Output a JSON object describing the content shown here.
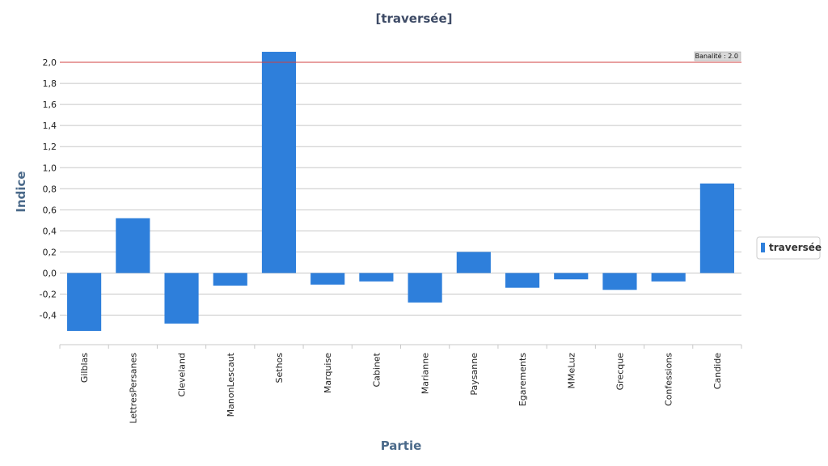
{
  "chart_data": {
    "type": "bar",
    "title": "[traversée]",
    "xlabel": "Partie",
    "ylabel": "Indice",
    "categories": [
      "Gilblas",
      "LettresPersanes",
      "Cleveland",
      "ManonLescaut",
      "Sethos",
      "Marquise",
      "Cabinet",
      "Marianne",
      "Paysanne",
      "Egarements",
      "MMeLuz",
      "Grecque",
      "Confessions",
      "Candide"
    ],
    "series": [
      {
        "name": "traversée",
        "color": "#2e7fdb",
        "values": [
          -0.55,
          0.52,
          -0.48,
          -0.12,
          2.1,
          -0.11,
          -0.08,
          -0.28,
          0.2,
          -0.14,
          -0.06,
          -0.16,
          -0.08,
          0.85
        ]
      }
    ],
    "yticks": [
      "2,0",
      "1,8",
      "1,6",
      "1,4",
      "1,2",
      "1,0",
      "0,8",
      "0,6",
      "0,4",
      "0,2",
      "0,0",
      "-0,2",
      "-0,4"
    ],
    "ytick_values": [
      2.0,
      1.8,
      1.6,
      1.4,
      1.2,
      1.0,
      0.8,
      0.6,
      0.4,
      0.2,
      0.0,
      -0.2,
      -0.4
    ],
    "ylim": [
      -0.68,
      2.2
    ],
    "grid": true,
    "legend_position": "right",
    "reference_line": {
      "value": 2.0,
      "label": "Banalité : 2.0",
      "color": "#d04040"
    }
  }
}
